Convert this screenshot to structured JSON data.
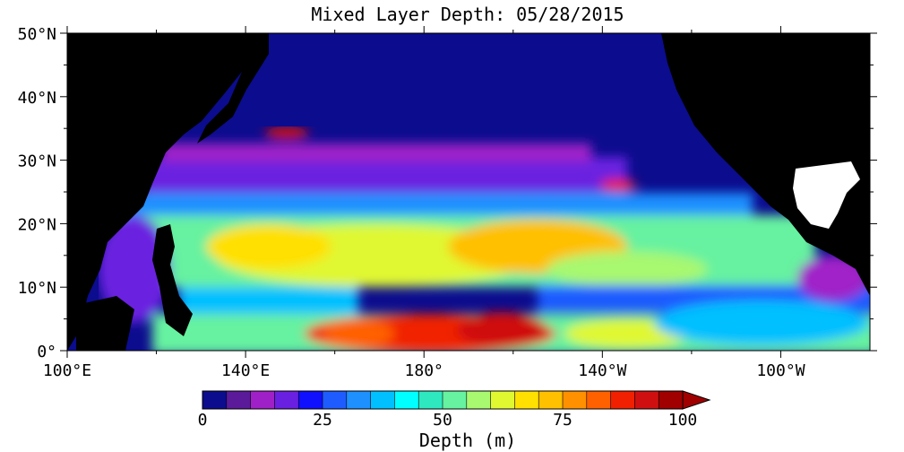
{
  "title": "Mixed Layer Depth: 05/28/2015",
  "map": {
    "lon_range": [
      100,
      280
    ],
    "lat_range": [
      0,
      50
    ],
    "lat_ticks": [
      {
        "value": 50,
        "label": "50°N"
      },
      {
        "value": 40,
        "label": "40°N"
      },
      {
        "value": 30,
        "label": "30°N"
      },
      {
        "value": 20,
        "label": "20°N"
      },
      {
        "value": 10,
        "label": "10°N"
      },
      {
        "value": 0,
        "label": "0°"
      }
    ],
    "lon_ticks": [
      {
        "value": 100,
        "label": "100°E"
      },
      {
        "value": 140,
        "label": "140°E"
      },
      {
        "value": 180,
        "label": "180°"
      },
      {
        "value": 220,
        "label": "140°W"
      },
      {
        "value": 260,
        "label": "100°W"
      }
    ],
    "land_color": "#000000",
    "ocean_base_color": "#0c0c8e"
  },
  "colorbar": {
    "min": 0,
    "max": 100,
    "tick_labels": [
      "0",
      "25",
      "50",
      "75",
      "100"
    ],
    "tick_values": [
      0,
      25,
      50,
      75,
      100
    ],
    "label": "Depth (m)",
    "colors": [
      "#0c0c8e",
      "#5a1a9a",
      "#a020c8",
      "#6a20e0",
      "#1010ff",
      "#1e5cff",
      "#1e90ff",
      "#00c0ff",
      "#00ffff",
      "#2ee8c0",
      "#66f2a0",
      "#a8f870",
      "#e0f830",
      "#ffe000",
      "#ffc000",
      "#ff9000",
      "#ff6000",
      "#f02000",
      "#d01010",
      "#a00000"
    ]
  }
}
